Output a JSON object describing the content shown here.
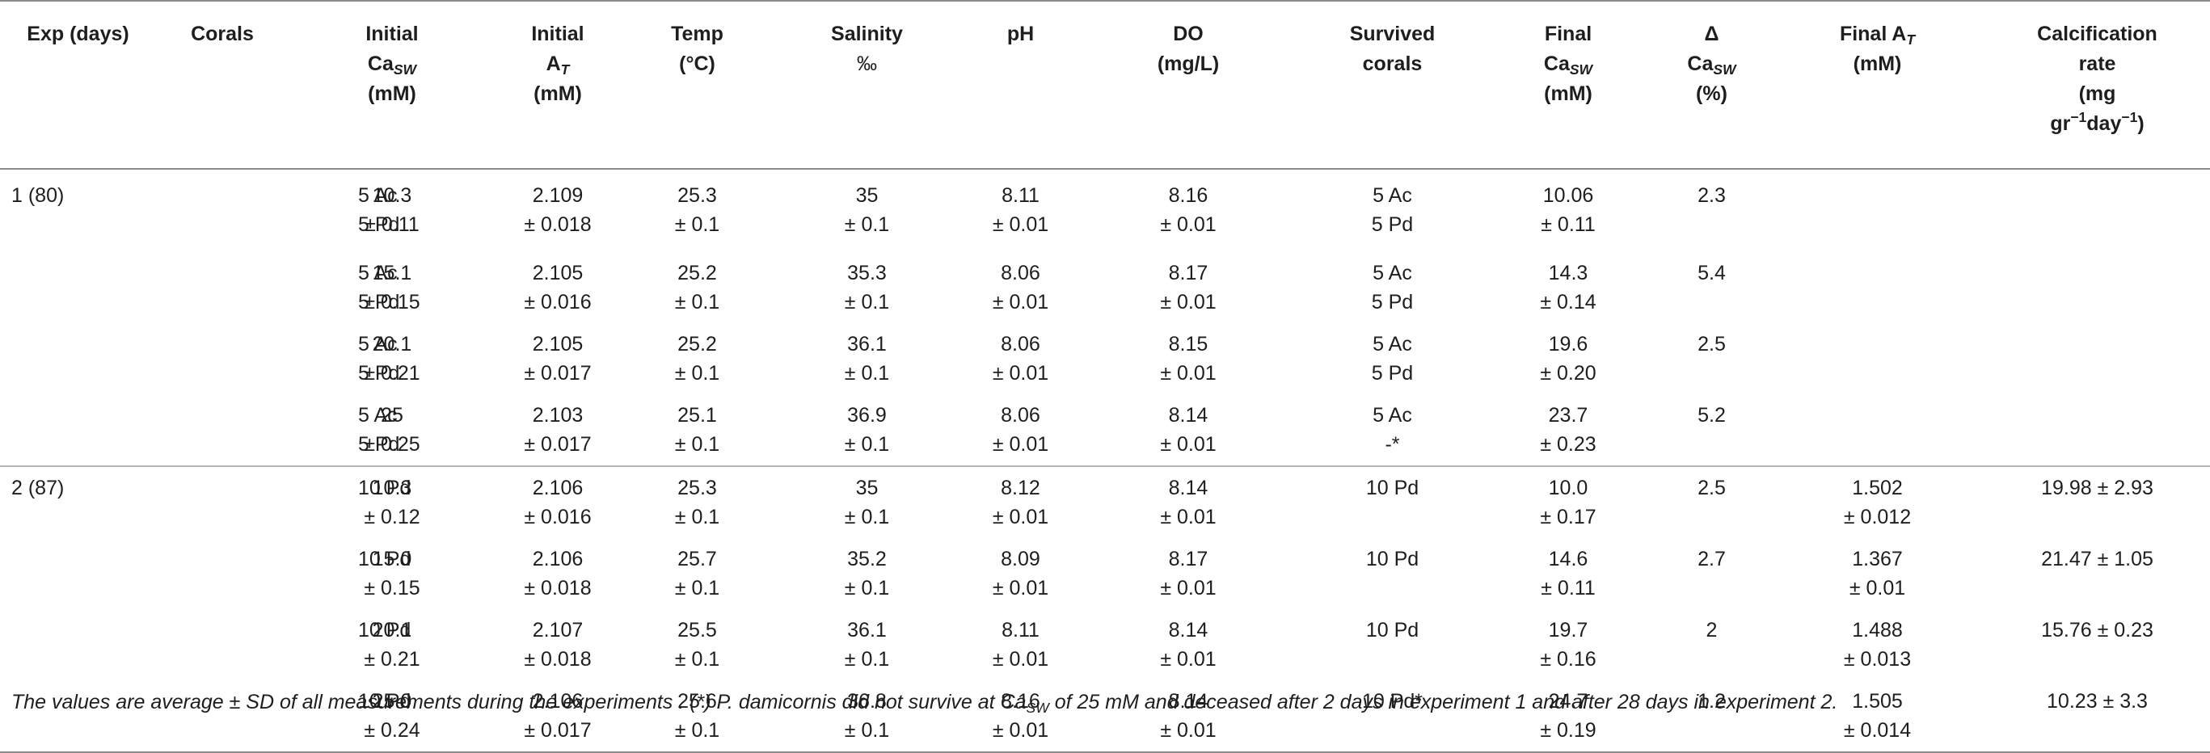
{
  "headers": [
    {
      "id": "exp",
      "lines": [
        "Exp (days)"
      ]
    },
    {
      "id": "corals",
      "lines": [
        "Corals"
      ]
    },
    {
      "id": "initial_ca",
      "lines": [
        "Initial",
        "Ca",
        "(mM)"
      ],
      "sub": {
        "line": 1,
        "text": "SW"
      }
    },
    {
      "id": "initial_at",
      "lines": [
        "Initial",
        "A",
        "(mM)"
      ],
      "sub": {
        "line": 1,
        "text": "T"
      }
    },
    {
      "id": "temp",
      "lines": [
        "Temp",
        "(°C)"
      ]
    },
    {
      "id": "salinity",
      "lines": [
        "Salinity",
        "‰"
      ]
    },
    {
      "id": "ph",
      "lines": [
        "pH"
      ]
    },
    {
      "id": "do",
      "lines": [
        "DO",
        "(mg/L)"
      ]
    },
    {
      "id": "survived",
      "lines": [
        "Survived",
        "corals"
      ]
    },
    {
      "id": "final_ca",
      "lines": [
        "Final",
        "Ca",
        "(mM)"
      ],
      "sub": {
        "line": 1,
        "text": "SW"
      }
    },
    {
      "id": "delta_ca",
      "lines": [
        "Δ",
        "Ca",
        "(%)"
      ],
      "sub": {
        "line": 1,
        "text": "SW"
      }
    },
    {
      "id": "final_at",
      "lines": [
        "Final A",
        ""
      ],
      "sub": {
        "line": 0,
        "text": "T"
      },
      "extra_line2": "(mM)"
    },
    {
      "id": "calc_rate",
      "lines": [
        "Calcification",
        "rate",
        "(mg",
        "gr",
        "day",
        ")"
      ]
    }
  ],
  "header_text": {
    "calc_gr": "gr",
    "calc_minus1a": "−1",
    "calc_day": "day",
    "calc_minus1b": "−1",
    "calc_close": ")",
    "final_at_mm": "(mM)"
  },
  "rows": [
    {
      "exp": "1 (80)",
      "corals": [
        "5 Ac",
        "5 Pd"
      ],
      "initial_ca": [
        "10.3",
        "± 0.11"
      ],
      "initial_at": [
        "2.109",
        "± 0.018"
      ],
      "temp": [
        "25.3",
        "± 0.1"
      ],
      "salinity": [
        "35",
        "± 0.1"
      ],
      "ph": [
        "8.11",
        "± 0.01"
      ],
      "do": [
        "8.16",
        "± 0.01"
      ],
      "survived": [
        "5 Ac",
        "5 Pd"
      ],
      "final_ca": [
        "10.06",
        "± 0.11"
      ],
      "delta_ca": "2.3",
      "final_at": [
        "",
        ""
      ],
      "calc_rate": ""
    },
    {
      "exp": "",
      "corals": [
        "5 Ac",
        "5 Pd"
      ],
      "initial_ca": [
        "15.1",
        "± 0.15"
      ],
      "initial_at": [
        "2.105",
        "± 0.016"
      ],
      "temp": [
        "25.2",
        "± 0.1"
      ],
      "salinity": [
        "35.3",
        "± 0.1"
      ],
      "ph": [
        "8.06",
        "± 0.01"
      ],
      "do": [
        "8.17",
        "± 0.01"
      ],
      "survived": [
        "5 Ac",
        "5 Pd"
      ],
      "final_ca": [
        "14.3",
        "± 0.14"
      ],
      "delta_ca": "5.4",
      "final_at": [
        "",
        ""
      ],
      "calc_rate": ""
    },
    {
      "exp": "",
      "corals": [
        "5 Ac",
        "5 Pd"
      ],
      "initial_ca": [
        "20.1",
        "± 0.21"
      ],
      "initial_at": [
        "2.105",
        "± 0.017"
      ],
      "temp": [
        "25.2",
        "± 0.1"
      ],
      "salinity": [
        "36.1",
        "± 0.1"
      ],
      "ph": [
        "8.06",
        "± 0.01"
      ],
      "do": [
        "8.15",
        "± 0.01"
      ],
      "survived": [
        "5 Ac",
        "5 Pd"
      ],
      "final_ca": [
        "19.6",
        "± 0.20"
      ],
      "delta_ca": "2.5",
      "final_at": [
        "",
        ""
      ],
      "calc_rate": ""
    },
    {
      "exp": "",
      "corals": [
        "5 Ac",
        "5 Pd"
      ],
      "initial_ca": [
        "25",
        "± 0.25"
      ],
      "initial_at": [
        "2.103",
        "± 0.017"
      ],
      "temp": [
        "25.1",
        "± 0.1"
      ],
      "salinity": [
        "36.9",
        "± 0.1"
      ],
      "ph": [
        "8.06",
        "± 0.01"
      ],
      "do": [
        "8.14",
        "± 0.01"
      ],
      "survived": [
        "5 Ac",
        "-*"
      ],
      "final_ca": [
        "23.7",
        "± 0.23"
      ],
      "delta_ca": "5.2",
      "final_at": [
        "",
        ""
      ],
      "calc_rate": ""
    },
    {
      "exp": "2 (87)",
      "corals": [
        "10 Pd",
        ""
      ],
      "initial_ca": [
        "10.3",
        "± 0.12"
      ],
      "initial_at": [
        "2.106",
        "± 0.016"
      ],
      "temp": [
        "25.3",
        "± 0.1"
      ],
      "salinity": [
        "35",
        "± 0.1"
      ],
      "ph": [
        "8.12",
        "± 0.01"
      ],
      "do": [
        "8.14",
        "± 0.01"
      ],
      "survived": [
        "10 Pd",
        ""
      ],
      "final_ca": [
        "10.0",
        "± 0.17"
      ],
      "delta_ca": "2.5",
      "final_at": [
        "1.502",
        "± 0.012"
      ],
      "calc_rate": "19.98 ± 2.93"
    },
    {
      "exp": "",
      "corals": [
        "10 Pd",
        ""
      ],
      "initial_ca": [
        "15.0",
        "± 0.15"
      ],
      "initial_at": [
        "2.106",
        "± 0.018"
      ],
      "temp": [
        "25.7",
        "± 0.1"
      ],
      "salinity": [
        "35.2",
        "± 0.1"
      ],
      "ph": [
        "8.09",
        "± 0.01"
      ],
      "do": [
        "8.17",
        "± 0.01"
      ],
      "survived": [
        "10 Pd",
        ""
      ],
      "final_ca": [
        "14.6",
        "± 0.11"
      ],
      "delta_ca": "2.7",
      "final_at": [
        "1.367",
        "± 0.01"
      ],
      "calc_rate": "21.47 ± 1.05"
    },
    {
      "exp": "",
      "corals": [
        "10 Pd",
        ""
      ],
      "initial_ca": [
        "20.1",
        "± 0.21"
      ],
      "initial_at": [
        "2.107",
        "± 0.018"
      ],
      "temp": [
        "25.5",
        "± 0.1"
      ],
      "salinity": [
        "36.1",
        "± 0.1"
      ],
      "ph": [
        "8.11",
        "± 0.01"
      ],
      "do": [
        "8.14",
        "± 0.01"
      ],
      "survived": [
        "10 Pd",
        ""
      ],
      "final_ca": [
        "19.7",
        "± 0.16"
      ],
      "delta_ca": "2",
      "final_at": [
        "1.488",
        "± 0.013"
      ],
      "calc_rate": "15.76 ± 0.23"
    },
    {
      "exp": "",
      "corals": [
        "10 Pd",
        ""
      ],
      "initial_ca": [
        "25.0",
        "± 0.24"
      ],
      "initial_at": [
        "2.106",
        "± 0.017"
      ],
      "temp": [
        "25.6",
        "± 0.1"
      ],
      "salinity": [
        "36.8",
        "± 0.1"
      ],
      "ph": [
        "8.16",
        "± 0.01"
      ],
      "do": [
        "8.14",
        "± 0.01"
      ],
      "survived": [
        "10 Pd*",
        ""
      ],
      "final_ca": [
        "24.7",
        "± 0.19"
      ],
      "delta_ca": "1.2",
      "final_at": [
        "1.505",
        "± 0.014"
      ],
      "calc_rate": "10.23 ± 3.3"
    }
  ],
  "footnote": {
    "part1": "The values are average ± SD of all measurements during the experiments",
    "part2": " . (*) P. damicornis did not survive at Ca",
    "sub": "SW",
    "part3": " of 25 mM and deceased after 2 days in experiment 1 and after 28 days in experiment 2."
  },
  "colors": {
    "text": "#1e1e1e",
    "rule_strong": "#8a8a8a",
    "rule_light": "#b5b5b5",
    "background": "#ffffff"
  }
}
